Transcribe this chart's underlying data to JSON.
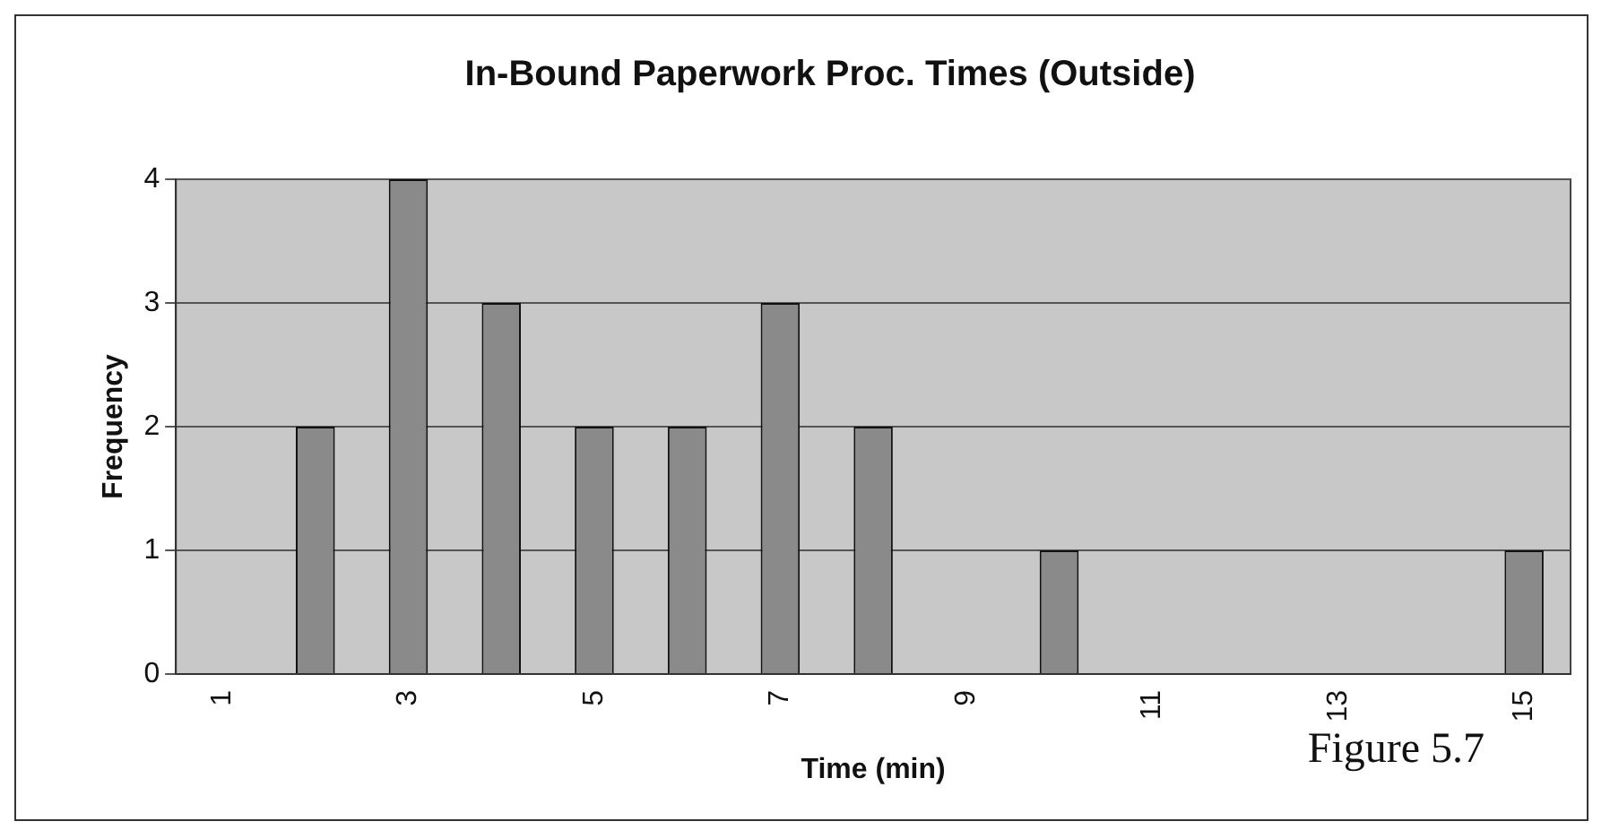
{
  "chart_data": {
    "type": "bar",
    "title": "In-Bound Paperwork Proc. Times (Outside)",
    "xlabel": "Time (min)",
    "ylabel": "Frequency",
    "categories": [
      "1",
      null,
      "3",
      null,
      "5",
      null,
      "7",
      null,
      "9",
      null,
      "11",
      null,
      "13",
      null,
      "15"
    ],
    "values": [
      0,
      2,
      4,
      3,
      2,
      2,
      3,
      2,
      0,
      1,
      0,
      0,
      0,
      0,
      1
    ],
    "color": "#8a8a8a",
    "ylim": [
      0,
      4
    ],
    "yticks": [
      0,
      1,
      2,
      3,
      4
    ],
    "grid": "y",
    "annotations": [
      "Figure 5.7"
    ]
  }
}
